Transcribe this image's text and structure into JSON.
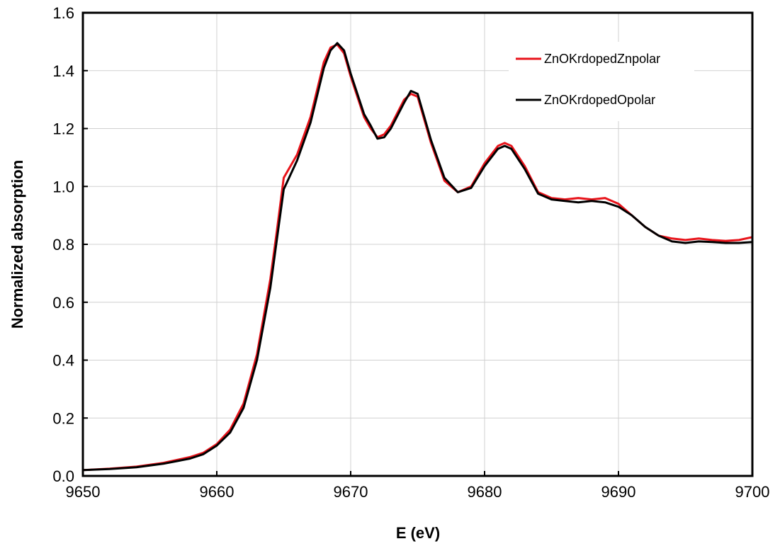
{
  "chart_data": {
    "type": "line",
    "title": "",
    "xlabel": "E (eV)",
    "ylabel": "Normalized absorption",
    "xlim": [
      9650,
      9700
    ],
    "ylim": [
      0.0,
      1.6
    ],
    "xticks": [
      9650,
      9660,
      9670,
      9680,
      9690,
      9700
    ],
    "xtick_labels": [
      "9650",
      "9660",
      "9670",
      "9680",
      "9690",
      "9700"
    ],
    "yticks": [
      0.0,
      0.2,
      0.4,
      0.6,
      0.8,
      1.0,
      1.2,
      1.4,
      1.6
    ],
    "ytick_labels": [
      "0.0",
      "0.2",
      "0.4",
      "0.6",
      "0.8",
      "1.0",
      "1.2",
      "1.4",
      "1.6"
    ],
    "grid": true,
    "legend_position": "top-right",
    "series": [
      {
        "name": "ZnOKrdopedZnpolar",
        "color": "#e8141b",
        "x": [
          9650,
          9652,
          9654,
          9656,
          9658,
          9659,
          9660,
          9661,
          9662,
          9663,
          9664,
          9664.5,
          9665,
          9666,
          9667,
          9668,
          9668.5,
          9669,
          9669.5,
          9670,
          9671,
          9671.5,
          9672,
          9672.5,
          9673,
          9674,
          9674.5,
          9675,
          9676,
          9677,
          9678,
          9679,
          9680,
          9681,
          9681.5,
          9682,
          9683,
          9684,
          9685,
          9686,
          9687,
          9688,
          9689,
          9690,
          9691,
          9692,
          9693,
          9694,
          9695,
          9696,
          9697,
          9698,
          9699,
          9700
        ],
        "values": [
          0.02,
          0.025,
          0.032,
          0.045,
          0.065,
          0.08,
          0.11,
          0.16,
          0.25,
          0.42,
          0.68,
          0.85,
          1.03,
          1.11,
          1.24,
          1.43,
          1.48,
          1.49,
          1.46,
          1.38,
          1.24,
          1.2,
          1.17,
          1.18,
          1.21,
          1.3,
          1.32,
          1.31,
          1.15,
          1.02,
          0.98,
          1.0,
          1.08,
          1.14,
          1.15,
          1.14,
          1.07,
          0.98,
          0.96,
          0.955,
          0.96,
          0.955,
          0.96,
          0.94,
          0.9,
          0.86,
          0.83,
          0.82,
          0.815,
          0.82,
          0.815,
          0.812,
          0.815,
          0.825
        ]
      },
      {
        "name": "ZnOKrdopedOpolar",
        "color": "#000000",
        "x": [
          9650,
          9652,
          9654,
          9656,
          9658,
          9659,
          9660,
          9661,
          9662,
          9663,
          9664,
          9664.5,
          9665,
          9666,
          9667,
          9668,
          9668.5,
          9669,
          9669.5,
          9670,
          9671,
          9671.5,
          9672,
          9672.5,
          9673,
          9674,
          9674.5,
          9675,
          9676,
          9677,
          9678,
          9679,
          9680,
          9681,
          9681.5,
          9682,
          9683,
          9684,
          9685,
          9686,
          9687,
          9688,
          9689,
          9690,
          9691,
          9692,
          9693,
          9694,
          9695,
          9696,
          9697,
          9698,
          9699,
          9700
        ],
        "values": [
          0.02,
          0.024,
          0.03,
          0.042,
          0.06,
          0.075,
          0.105,
          0.15,
          0.235,
          0.4,
          0.65,
          0.82,
          0.99,
          1.09,
          1.22,
          1.41,
          1.47,
          1.495,
          1.47,
          1.39,
          1.25,
          1.21,
          1.165,
          1.17,
          1.2,
          1.29,
          1.33,
          1.32,
          1.16,
          1.03,
          0.98,
          0.995,
          1.07,
          1.13,
          1.14,
          1.13,
          1.06,
          0.975,
          0.955,
          0.95,
          0.945,
          0.95,
          0.945,
          0.93,
          0.9,
          0.86,
          0.83,
          0.81,
          0.805,
          0.81,
          0.808,
          0.805,
          0.805,
          0.808
        ]
      }
    ]
  }
}
